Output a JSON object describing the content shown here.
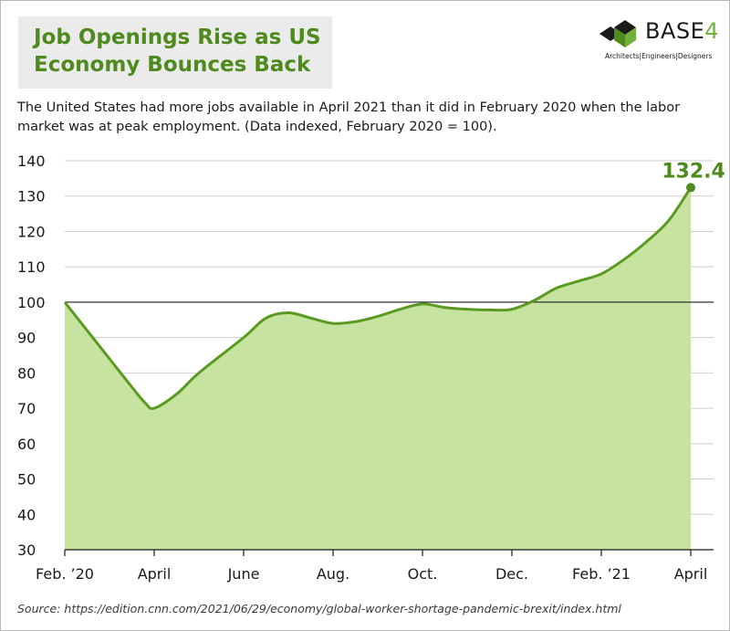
{
  "header": {
    "title_line1": "Job Openings Rise as US",
    "title_line2": "Economy Bounces Back",
    "subtitle": "The United States had more jobs available in April 2021 than it did in February 2020 when the labor market was at peak employment. (Data indexed, February 2020 = 100)."
  },
  "logo": {
    "word": "BASE",
    "suffix": "4",
    "tagline": "Architects|Engineers|Designers"
  },
  "footer": {
    "source": "Source: https://edition.cnn.com/2021/06/29/economy/global-worker-shortage-pandemic-brexit/index.html"
  },
  "colors": {
    "accent": "#4e8a1e",
    "line": "#5b9a22",
    "fill": "#c6e39f",
    "point": "#4e8a1e",
    "grid": "#cfcfcf",
    "baseline": "#333333"
  },
  "chart_data": {
    "type": "area",
    "title": "",
    "xlabel": "",
    "ylabel": "",
    "ylim": [
      30,
      140
    ],
    "yticks": [
      30,
      40,
      50,
      60,
      70,
      80,
      90,
      100,
      110,
      120,
      130,
      140
    ],
    "reference_line": 100,
    "grid": "horizontal",
    "xticks": [
      {
        "label": "Feb. ’20",
        "month": 0
      },
      {
        "label": "April",
        "month": 2
      },
      {
        "label": "June",
        "month": 4
      },
      {
        "label": "Aug.",
        "month": 6
      },
      {
        "label": "Oct.",
        "month": 8
      },
      {
        "label": "Dec.",
        "month": 10
      },
      {
        "label": "Feb. ’21",
        "month": 12
      },
      {
        "label": "April",
        "month": 14
      }
    ],
    "series": [
      {
        "month": [
          0,
          0.5,
          1,
          1.5,
          1.8,
          2,
          2.5,
          3,
          4,
          4.5,
          5,
          5.5,
          6,
          6.5,
          7,
          7.5,
          8,
          8.5,
          9,
          9.5,
          10,
          10.5,
          11,
          11.5,
          12,
          12.5,
          13,
          13.5,
          14
        ],
        "values": [
          100,
          92,
          84,
          76,
          71.5,
          70,
          74,
          80,
          90,
          95.5,
          97,
          95.5,
          94,
          94.5,
          96,
          98,
          99.5,
          98.5,
          98,
          97.8,
          98,
          100.5,
          104,
          106,
          108,
          112,
          117,
          123,
          132.4
        ]
      }
    ],
    "annotations": [
      {
        "label": "132.4",
        "month": 14,
        "value": 132.4
      }
    ]
  }
}
